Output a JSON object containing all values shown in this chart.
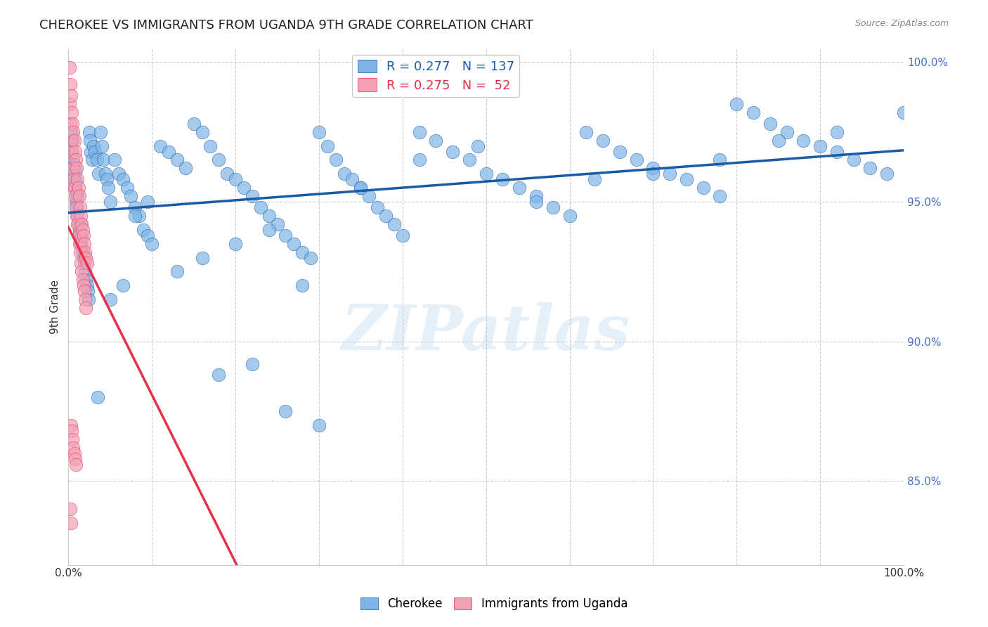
{
  "title": "CHEROKEE VS IMMIGRANTS FROM UGANDA 9TH GRADE CORRELATION CHART",
  "source": "Source: ZipAtlas.com",
  "xlabel": "",
  "ylabel": "9th Grade",
  "xlim": [
    0,
    1
  ],
  "ylim": [
    0.82,
    1.005
  ],
  "xticks": [
    0.0,
    0.1,
    0.2,
    0.3,
    0.4,
    0.5,
    0.6,
    0.7,
    0.8,
    0.9,
    1.0
  ],
  "xticklabels": [
    "0.0%",
    "",
    "",
    "",
    "",
    "",
    "",
    "",
    "",
    "",
    "100.0%"
  ],
  "ytick_positions": [
    0.85,
    0.9,
    0.95,
    1.0
  ],
  "ytick_labels": [
    "85.0%",
    "90.0%",
    "95.0%",
    "100.0%"
  ],
  "blue_R": 0.277,
  "blue_N": 137,
  "pink_R": 0.275,
  "pink_N": 52,
  "blue_color": "#7EB5E8",
  "pink_color": "#F5A0B5",
  "blue_line_color": "#1A5BA8",
  "pink_line_color": "#E8304A",
  "legend_blue_label": "R = 0.277   N = 137",
  "legend_pink_label": "R = 0.275   N =  52",
  "watermark": "ZIPatlas",
  "background_color": "#ffffff",
  "grid_color": "#cccccc",
  "blue_scatter_x": [
    0.002,
    0.003,
    0.004,
    0.005,
    0.005,
    0.006,
    0.007,
    0.007,
    0.008,
    0.008,
    0.009,
    0.009,
    0.01,
    0.01,
    0.011,
    0.011,
    0.012,
    0.013,
    0.014,
    0.015,
    0.015,
    0.016,
    0.017,
    0.018,
    0.019,
    0.02,
    0.021,
    0.022,
    0.023,
    0.024,
    0.025,
    0.026,
    0.027,
    0.028,
    0.03,
    0.032,
    0.034,
    0.036,
    0.038,
    0.04,
    0.042,
    0.044,
    0.046,
    0.048,
    0.05,
    0.055,
    0.06,
    0.065,
    0.07,
    0.075,
    0.08,
    0.085,
    0.09,
    0.095,
    0.1,
    0.11,
    0.12,
    0.13,
    0.14,
    0.15,
    0.16,
    0.17,
    0.18,
    0.19,
    0.2,
    0.21,
    0.22,
    0.23,
    0.24,
    0.25,
    0.26,
    0.27,
    0.28,
    0.29,
    0.3,
    0.31,
    0.32,
    0.33,
    0.34,
    0.35,
    0.36,
    0.37,
    0.38,
    0.39,
    0.4,
    0.42,
    0.44,
    0.46,
    0.48,
    0.5,
    0.52,
    0.54,
    0.56,
    0.58,
    0.6,
    0.62,
    0.64,
    0.66,
    0.68,
    0.7,
    0.72,
    0.74,
    0.76,
    0.78,
    0.8,
    0.82,
    0.84,
    0.86,
    0.88,
    0.9,
    0.92,
    0.94,
    0.96,
    0.98,
    1.0,
    0.035,
    0.05,
    0.065,
    0.08,
    0.095,
    0.13,
    0.16,
    0.2,
    0.24,
    0.28,
    0.35,
    0.42,
    0.49,
    0.56,
    0.63,
    0.7,
    0.78,
    0.85,
    0.92,
    0.18,
    0.22,
    0.26,
    0.3
  ],
  "blue_scatter_y": [
    0.97,
    0.975,
    0.968,
    0.972,
    0.965,
    0.96,
    0.958,
    0.963,
    0.955,
    0.961,
    0.95,
    0.957,
    0.948,
    0.953,
    0.945,
    0.952,
    0.942,
    0.94,
    0.938,
    0.935,
    0.942,
    0.938,
    0.932,
    0.93,
    0.928,
    0.925,
    0.922,
    0.92,
    0.918,
    0.915,
    0.975,
    0.972,
    0.968,
    0.965,
    0.97,
    0.968,
    0.965,
    0.96,
    0.975,
    0.97,
    0.965,
    0.96,
    0.958,
    0.955,
    0.95,
    0.965,
    0.96,
    0.958,
    0.955,
    0.952,
    0.948,
    0.945,
    0.94,
    0.938,
    0.935,
    0.97,
    0.968,
    0.965,
    0.962,
    0.978,
    0.975,
    0.97,
    0.965,
    0.96,
    0.958,
    0.955,
    0.952,
    0.948,
    0.945,
    0.942,
    0.938,
    0.935,
    0.932,
    0.93,
    0.975,
    0.97,
    0.965,
    0.96,
    0.958,
    0.955,
    0.952,
    0.948,
    0.945,
    0.942,
    0.938,
    0.975,
    0.972,
    0.968,
    0.965,
    0.96,
    0.958,
    0.955,
    0.952,
    0.948,
    0.945,
    0.975,
    0.972,
    0.968,
    0.965,
    0.962,
    0.96,
    0.958,
    0.955,
    0.952,
    0.985,
    0.982,
    0.978,
    0.975,
    0.972,
    0.97,
    0.968,
    0.965,
    0.962,
    0.96,
    0.982,
    0.88,
    0.915,
    0.92,
    0.945,
    0.95,
    0.925,
    0.93,
    0.935,
    0.94,
    0.92,
    0.955,
    0.965,
    0.97,
    0.95,
    0.958,
    0.96,
    0.965,
    0.972,
    0.975,
    0.888,
    0.892,
    0.875,
    0.87
  ],
  "pink_scatter_x": [
    0.001,
    0.001,
    0.002,
    0.002,
    0.003,
    0.003,
    0.004,
    0.004,
    0.005,
    0.005,
    0.006,
    0.006,
    0.007,
    0.007,
    0.008,
    0.008,
    0.009,
    0.009,
    0.01,
    0.01,
    0.011,
    0.011,
    0.012,
    0.012,
    0.013,
    0.013,
    0.014,
    0.014,
    0.015,
    0.015,
    0.016,
    0.016,
    0.017,
    0.017,
    0.018,
    0.018,
    0.019,
    0.019,
    0.02,
    0.02,
    0.021,
    0.021,
    0.022,
    0.003,
    0.004,
    0.005,
    0.006,
    0.007,
    0.008,
    0.009,
    0.002,
    0.003
  ],
  "pink_scatter_y": [
    0.998,
    0.985,
    0.992,
    0.978,
    0.988,
    0.972,
    0.982,
    0.968,
    0.978,
    0.962,
    0.975,
    0.958,
    0.972,
    0.955,
    0.968,
    0.952,
    0.965,
    0.948,
    0.962,
    0.945,
    0.958,
    0.942,
    0.955,
    0.938,
    0.952,
    0.935,
    0.948,
    0.932,
    0.945,
    0.928,
    0.942,
    0.925,
    0.94,
    0.922,
    0.938,
    0.92,
    0.935,
    0.918,
    0.932,
    0.915,
    0.93,
    0.912,
    0.928,
    0.87,
    0.868,
    0.865,
    0.862,
    0.86,
    0.858,
    0.856,
    0.84,
    0.835
  ]
}
